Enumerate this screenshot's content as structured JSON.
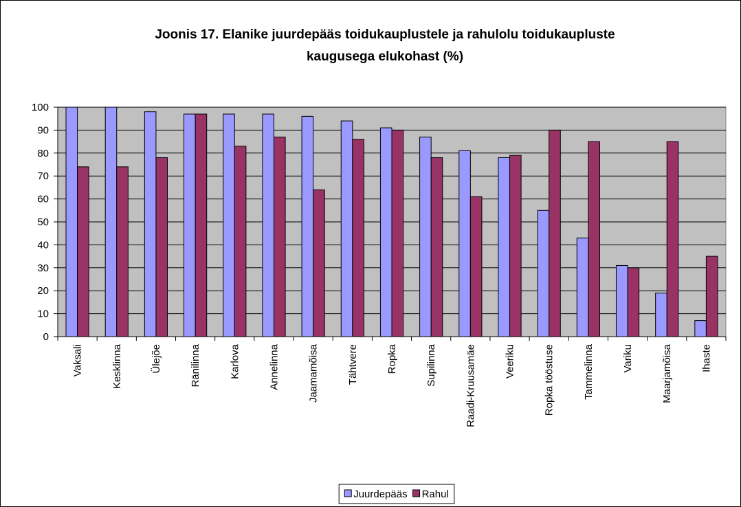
{
  "chart_data": {
    "type": "bar",
    "title": [
      "Joonis 17. Elanike juurdepääs toidukauplustele ja rahulolu toidukaupluste",
      "kaugusega elukohast (%)"
    ],
    "categories": [
      "Vaksali",
      "Kesklinna",
      "Ülejõe",
      "Ränilinna",
      "Karlova",
      "Annelinna",
      "Jaamamõisa",
      "Tähtvere",
      "Ropka",
      "Supilinna",
      "Raadi-Kruusamäe",
      "Veeriku",
      "Ropka tööstuse",
      "Tammelinna",
      "Variku",
      "Maarjamõisa",
      "Ihaste"
    ],
    "series": [
      {
        "name": "Juurdepääs",
        "color": "#9999ff",
        "values": [
          100,
          100,
          98,
          97,
          97,
          97,
          96,
          94,
          91,
          87,
          81,
          78,
          55,
          43,
          31,
          19,
          7
        ]
      },
      {
        "name": "Rahul",
        "color": "#993366",
        "values": [
          74,
          74,
          78,
          97,
          83,
          87,
          64,
          86,
          90,
          78,
          61,
          79,
          90,
          85,
          30,
          85,
          35
        ]
      }
    ],
    "ylim": [
      0,
      100
    ],
    "yticks": [
      0,
      10,
      20,
      30,
      40,
      50,
      60,
      70,
      80,
      90,
      100
    ],
    "grid": true,
    "plot_background": "#c0c0c0",
    "legend": "bottom"
  }
}
